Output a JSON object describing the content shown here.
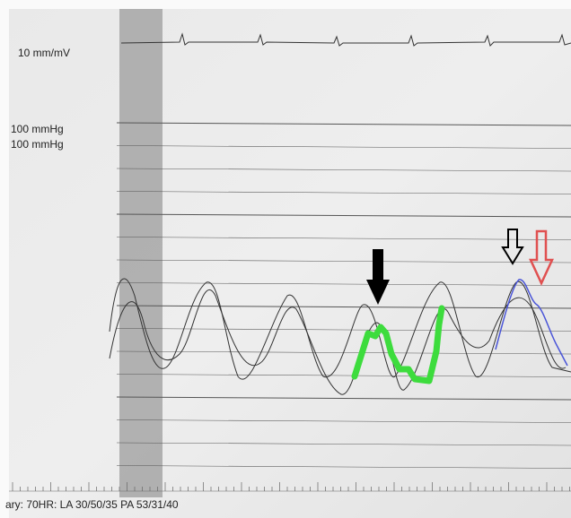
{
  "labels": {
    "ecg_scale": "10 mm/mV",
    "pressure_scale_1": "100 mmHg",
    "pressure_scale_2": "100 mmHg",
    "summary": "ary:  70HR: LA 30/50/35 PA 53/31/40"
  }
}
